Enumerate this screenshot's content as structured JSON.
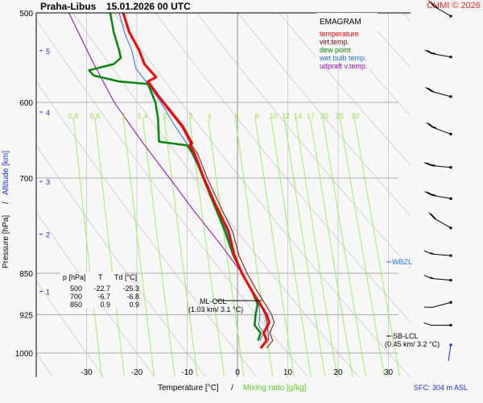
{
  "header": {
    "station": "Praha-Libus",
    "datetime": "15.01.2026 00 UTC",
    "copyright": "CHMI © 2026"
  },
  "legend": {
    "title": "EMAGRAM",
    "items": [
      {
        "label": "temperature",
        "color": "#ff0000"
      },
      {
        "label": "virt.temp.",
        "color": "#8b0000"
      },
      {
        "label": "dew point",
        "color": "#008800"
      },
      {
        "label": "wet bulb temp.",
        "color": "#1e6fd9"
      },
      {
        "label": "udpraft v.temp.",
        "color": "#9900aa"
      }
    ]
  },
  "table": {
    "headers": [
      "p [hPa]",
      "T",
      "Td [°C]"
    ],
    "rows": [
      [
        "500",
        "-22.7",
        "-25.3"
      ],
      [
        "700",
        "-6.7",
        "-6.8"
      ],
      [
        "850",
        "0.9",
        "0.9"
      ]
    ]
  },
  "annotations": {
    "ml_ccl": "ML-CCL",
    "ml_ccl_detail": "(1.03 km/ 3.1 °C)",
    "sb_lcl": "SB-LCL",
    "sb_lcl_detail": "(0.45 km/ 3.2 °C)",
    "wbzl": "WBZL",
    "sfc": "SFC: 304 m ASL"
  },
  "chart_data": {
    "type": "line",
    "title": "Praha-Libus 15.01.2026 00 UTC",
    "xlabel": "Temperature [°C]",
    "xlabel2": "Mixing ratio [g/kg]",
    "ylabel": "Pressure [hPa]",
    "ylabel2": "Altitude [km]",
    "axis_separator": "/",
    "xlim": [
      -38,
      36
    ],
    "ylim": [
      1050,
      500
    ],
    "x_ticks": [
      "-30",
      "-20",
      "-10",
      "0",
      "10",
      "20",
      "30"
    ],
    "x_tick_values": [
      -30,
      -20,
      -10,
      0,
      10,
      20,
      30
    ],
    "pressure_ticks": [
      "500",
      "600",
      "700",
      "850",
      "925",
      "1000"
    ],
    "pressure_tick_values": [
      500,
      600,
      700,
      850,
      925,
      1000
    ],
    "altitude_ticks": [
      "5",
      "4",
      "3",
      "2",
      "1"
    ],
    "altitude_tick_pressures": [
      540,
      612,
      705,
      785,
      882
    ],
    "mixing_ratio_labels": [
      "0.4",
      "0.6",
      "1",
      "1.4",
      "2",
      "3",
      "4",
      "6",
      "8",
      "10",
      "12",
      "14",
      "17",
      "20",
      "25",
      "30"
    ],
    "mixing_ratio_values": [
      0.4,
      0.6,
      1,
      1.4,
      2,
      3,
      4,
      6,
      8,
      10,
      12,
      14,
      17,
      20,
      25,
      30
    ],
    "series": [
      {
        "name": "temperature",
        "points": [
          [
            500,
            -22.7
          ],
          [
            520,
            -21.5
          ],
          [
            540,
            -19.5
          ],
          [
            555,
            -18.5
          ],
          [
            570,
            -16.2
          ],
          [
            575,
            -17.8
          ],
          [
            590,
            -16.0
          ],
          [
            610,
            -13.5
          ],
          [
            630,
            -11.0
          ],
          [
            652,
            -9.2
          ],
          [
            655,
            -9.5
          ],
          [
            665,
            -8.6
          ],
          [
            700,
            -6.7
          ],
          [
            740,
            -4.3
          ],
          [
            780,
            -1.8
          ],
          [
            820,
            -0.6
          ],
          [
            850,
            0.9
          ],
          [
            880,
            2.8
          ],
          [
            905,
            4.5
          ],
          [
            925,
            5.8
          ],
          [
            940,
            6.3
          ],
          [
            960,
            5.2
          ],
          [
            975,
            5.8
          ],
          [
            990,
            4.6
          ]
        ]
      },
      {
        "name": "virt.temp.",
        "points": [
          [
            500,
            -22.6
          ],
          [
            520,
            -21.4
          ],
          [
            540,
            -19.4
          ],
          [
            555,
            -18.4
          ],
          [
            570,
            -16.1
          ],
          [
            575,
            -17.6
          ],
          [
            590,
            -15.8
          ],
          [
            610,
            -13.2
          ],
          [
            630,
            -10.7
          ],
          [
            652,
            -8.9
          ],
          [
            655,
            -9.1
          ],
          [
            665,
            -8.0
          ],
          [
            700,
            -6.0
          ],
          [
            740,
            -3.5
          ],
          [
            780,
            -1.0
          ],
          [
            820,
            0.3
          ],
          [
            850,
            1.9
          ],
          [
            880,
            3.8
          ],
          [
            905,
            5.5
          ],
          [
            925,
            6.8
          ],
          [
            940,
            7.3
          ],
          [
            960,
            6.4
          ],
          [
            975,
            7.0
          ],
          [
            990,
            5.8
          ]
        ]
      },
      {
        "name": "dew point",
        "points": [
          [
            500,
            -25.3
          ],
          [
            520,
            -24.6
          ],
          [
            540,
            -23.5
          ],
          [
            548,
            -23.2
          ],
          [
            555,
            -24.6
          ],
          [
            562,
            -29.5
          ],
          [
            568,
            -28.6
          ],
          [
            575,
            -23.5
          ],
          [
            578,
            -17.8
          ],
          [
            600,
            -16.3
          ],
          [
            620,
            -15.8
          ],
          [
            650,
            -15.6
          ],
          [
            655,
            -10.0
          ],
          [
            670,
            -8.5
          ],
          [
            700,
            -6.8
          ],
          [
            740,
            -4.6
          ],
          [
            780,
            -2.5
          ],
          [
            820,
            -0.8
          ],
          [
            850,
            0.9
          ],
          [
            880,
            2.8
          ],
          [
            905,
            4.0
          ],
          [
            925,
            3.6
          ],
          [
            945,
            3.4
          ],
          [
            960,
            4.6
          ],
          [
            975,
            4.1
          ]
        ]
      },
      {
        "name": "wet bulb temp.",
        "points": [
          [
            500,
            -23.5
          ],
          [
            520,
            -22.5
          ],
          [
            540,
            -21.0
          ],
          [
            560,
            -20.2
          ],
          [
            575,
            -18.2
          ],
          [
            600,
            -15.2
          ],
          [
            630,
            -12.4
          ],
          [
            652,
            -10.1
          ],
          [
            700,
            -6.7
          ],
          [
            740,
            -4.5
          ],
          [
            780,
            -2.2
          ],
          [
            820,
            -0.7
          ],
          [
            850,
            0.9
          ],
          [
            880,
            3.0
          ],
          [
            905,
            4.2
          ],
          [
            925,
            4.5
          ],
          [
            945,
            4.2
          ],
          [
            960,
            5.2
          ],
          [
            975,
            4.5
          ]
        ]
      },
      {
        "name": "udpraft v.temp.",
        "points": [
          [
            500,
            -33.5
          ],
          [
            550,
            -29.0
          ],
          [
            600,
            -24.5
          ],
          [
            650,
            -19.0
          ],
          [
            700,
            -13.5
          ],
          [
            750,
            -8.5
          ],
          [
            800,
            -3.5
          ],
          [
            850,
            0.9
          ],
          [
            880,
            2.8
          ],
          [
            905,
            4.5
          ],
          [
            925,
            5.5
          ],
          [
            950,
            6.0
          ],
          [
            975,
            6.2
          ]
        ]
      }
    ],
    "wind_barbs": [
      {
        "pressure": 500,
        "direction_deg": 300,
        "speed_kt": 25
      },
      {
        "pressure": 547,
        "direction_deg": 280,
        "speed_kt": 25
      },
      {
        "pressure": 593,
        "direction_deg": 285,
        "speed_kt": 20
      },
      {
        "pressure": 640,
        "direction_deg": 290,
        "speed_kt": 25
      },
      {
        "pressure": 685,
        "direction_deg": 275,
        "speed_kt": 25
      },
      {
        "pressure": 730,
        "direction_deg": 280,
        "speed_kt": 25
      },
      {
        "pressure": 775,
        "direction_deg": 300,
        "speed_kt": 20
      },
      {
        "pressure": 820,
        "direction_deg": 275,
        "speed_kt": 15
      },
      {
        "pressure": 862,
        "direction_deg": 275,
        "speed_kt": 15
      },
      {
        "pressure": 902,
        "direction_deg": 255,
        "speed_kt": 10
      },
      {
        "pressure": 945,
        "direction_deg": 270,
        "speed_kt": 10
      }
    ],
    "grid": true,
    "legend_position": "top-right"
  }
}
